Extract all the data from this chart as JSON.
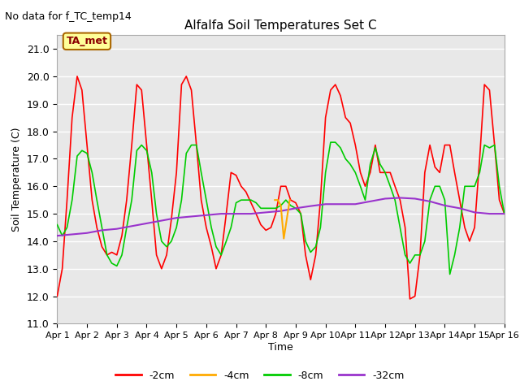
{
  "title": "Alfalfa Soil Temperatures Set C",
  "no_data_text": "No data for f_TC_temp14",
  "ylabel": "Soil Temperature (C)",
  "xlabel": "Time",
  "ylim": [
    11.0,
    21.5
  ],
  "yticks": [
    11.0,
    12.0,
    13.0,
    14.0,
    15.0,
    16.0,
    17.0,
    18.0,
    19.0,
    20.0,
    21.0
  ],
  "xlim": [
    0,
    15
  ],
  "xtick_labels": [
    "Apr 1",
    "Apr 2",
    "Apr 3",
    "Apr 4",
    "Apr 5",
    "Apr 6",
    "Apr 7",
    "Apr 8",
    "Apr 9",
    "Apr 10",
    "Apr 11",
    "Apr 12",
    "Apr 13",
    "Apr 14",
    "Apr 15",
    "Apr 16"
  ],
  "bg_color": "#e8e8e8",
  "grid_color": "#ffffff",
  "ta_met_box_color": "#ffff99",
  "ta_met_border_color": "#aa6600",
  "colors": {
    "2cm": "#ff0000",
    "4cm": "#ffaa00",
    "8cm": "#00cc00",
    "32cm": "#9933cc"
  },
  "x_2cm": [
    0,
    0.17,
    0.33,
    0.5,
    0.67,
    0.83,
    1.0,
    1.17,
    1.33,
    1.5,
    1.67,
    1.83,
    2.0,
    2.17,
    2.33,
    2.5,
    2.67,
    2.83,
    3.0,
    3.17,
    3.33,
    3.5,
    3.67,
    3.83,
    4.0,
    4.17,
    4.33,
    4.5,
    4.67,
    4.83,
    5.0,
    5.17,
    5.33,
    5.5,
    5.67,
    5.83,
    6.0,
    6.17,
    6.33,
    6.5,
    6.67,
    6.83,
    7.0,
    7.17,
    7.33,
    7.5,
    7.67,
    7.83,
    8.0,
    8.17,
    8.33,
    8.5,
    8.67,
    8.83,
    9.0,
    9.17,
    9.33,
    9.5,
    9.67,
    9.83,
    10.0,
    10.17,
    10.33,
    10.5,
    10.67,
    10.83,
    11.0,
    11.17,
    11.33,
    11.5,
    11.67,
    11.83,
    12.0,
    12.17,
    12.33,
    12.5,
    12.67,
    12.83,
    13.0,
    13.17,
    13.33,
    13.5,
    13.67,
    13.83,
    14.0,
    14.17,
    14.33,
    14.5,
    14.67,
    14.83,
    15.0
  ],
  "y_2cm": [
    12.0,
    13.0,
    15.5,
    18.5,
    20.0,
    19.5,
    17.5,
    15.5,
    14.5,
    13.8,
    13.5,
    13.6,
    13.5,
    14.2,
    15.5,
    17.5,
    19.7,
    19.5,
    17.5,
    15.5,
    13.5,
    13.0,
    13.5,
    14.8,
    16.5,
    19.7,
    20.0,
    19.5,
    17.5,
    15.5,
    14.5,
    13.8,
    13.0,
    13.5,
    15.0,
    16.5,
    16.4,
    16.0,
    15.8,
    15.4,
    15.0,
    14.6,
    14.4,
    14.5,
    15.0,
    16.0,
    16.0,
    15.5,
    15.4,
    15.0,
    13.5,
    12.6,
    13.5,
    15.5,
    18.5,
    19.5,
    19.7,
    19.3,
    18.5,
    18.3,
    17.5,
    16.5,
    16.0,
    16.5,
    17.5,
    16.5,
    16.5,
    16.5,
    16.0,
    15.5,
    14.5,
    11.9,
    12.0,
    13.5,
    16.5,
    17.5,
    16.7,
    16.5,
    17.5,
    17.5,
    16.5,
    15.5,
    14.5,
    14.0,
    14.5,
    17.0,
    19.7,
    19.5,
    17.5,
    15.5,
    15.0
  ],
  "x_8cm": [
    0,
    0.17,
    0.33,
    0.5,
    0.67,
    0.83,
    1.0,
    1.17,
    1.33,
    1.5,
    1.67,
    1.83,
    2.0,
    2.17,
    2.33,
    2.5,
    2.67,
    2.83,
    3.0,
    3.17,
    3.33,
    3.5,
    3.67,
    3.83,
    4.0,
    4.17,
    4.33,
    4.5,
    4.67,
    4.83,
    5.0,
    5.17,
    5.33,
    5.5,
    5.67,
    5.83,
    6.0,
    6.17,
    6.33,
    6.5,
    6.67,
    6.83,
    7.0,
    7.17,
    7.33,
    7.5,
    7.67,
    7.83,
    8.0,
    8.17,
    8.33,
    8.5,
    8.67,
    8.83,
    9.0,
    9.17,
    9.33,
    9.5,
    9.67,
    9.83,
    10.0,
    10.17,
    10.33,
    10.5,
    10.67,
    10.83,
    11.0,
    11.17,
    11.33,
    11.5,
    11.67,
    11.83,
    12.0,
    12.17,
    12.33,
    12.5,
    12.67,
    12.83,
    13.0,
    13.17,
    13.33,
    13.5,
    13.67,
    13.83,
    14.0,
    14.17,
    14.33,
    14.5,
    14.67,
    14.83,
    15.0
  ],
  "y_8cm": [
    14.6,
    14.2,
    14.5,
    15.5,
    17.1,
    17.3,
    17.2,
    16.5,
    15.5,
    14.5,
    13.5,
    13.2,
    13.1,
    13.5,
    14.5,
    15.5,
    17.3,
    17.5,
    17.3,
    16.5,
    15.0,
    14.0,
    13.8,
    14.0,
    14.5,
    15.5,
    17.2,
    17.5,
    17.5,
    16.5,
    15.5,
    14.5,
    13.8,
    13.5,
    14.0,
    14.5,
    15.4,
    15.5,
    15.5,
    15.5,
    15.4,
    15.2,
    15.2,
    15.2,
    15.2,
    15.3,
    15.5,
    15.3,
    15.2,
    15.0,
    14.0,
    13.6,
    13.8,
    14.5,
    16.5,
    17.6,
    17.6,
    17.4,
    17.0,
    16.8,
    16.5,
    16.0,
    15.5,
    16.8,
    17.4,
    16.8,
    16.5,
    16.0,
    15.5,
    14.5,
    13.5,
    13.2,
    13.5,
    13.5,
    14.0,
    15.5,
    16.0,
    16.0,
    15.5,
    12.8,
    13.5,
    14.5,
    16.0,
    16.0,
    16.0,
    16.5,
    17.5,
    17.4,
    17.5,
    16.0,
    15.0
  ],
  "x_32cm": [
    0,
    0.5,
    1.0,
    1.5,
    2.0,
    2.5,
    3.0,
    3.5,
    4.0,
    4.5,
    5.0,
    5.5,
    6.0,
    6.5,
    7.0,
    7.5,
    8.0,
    8.5,
    9.0,
    9.5,
    10.0,
    10.5,
    11.0,
    11.5,
    12.0,
    12.5,
    13.0,
    13.5,
    14.0,
    14.5,
    15.0
  ],
  "y_32cm": [
    14.2,
    14.25,
    14.3,
    14.4,
    14.45,
    14.55,
    14.65,
    14.75,
    14.85,
    14.9,
    14.95,
    15.0,
    15.0,
    15.0,
    15.05,
    15.1,
    15.2,
    15.28,
    15.35,
    15.35,
    15.35,
    15.45,
    15.55,
    15.58,
    15.55,
    15.45,
    15.3,
    15.2,
    15.05,
    15.0,
    15.0
  ],
  "x_4cm": [
    7.3,
    7.4,
    7.5,
    7.6,
    7.7,
    7.8
  ],
  "y_4cm": [
    15.5,
    15.5,
    15.3,
    14.1,
    14.8,
    15.5
  ],
  "legend_labels": [
    "-2cm",
    "-4cm",
    "-8cm",
    "-32cm"
  ]
}
